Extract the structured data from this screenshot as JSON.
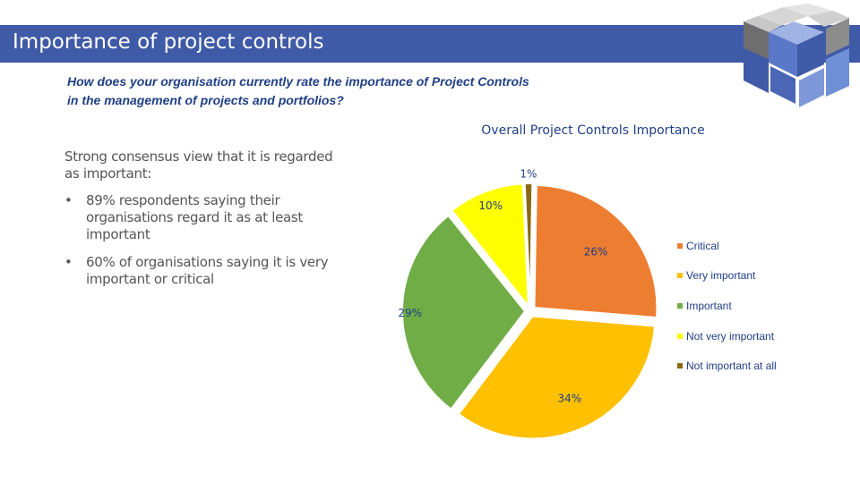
{
  "header": {
    "title": "Importance of project controls"
  },
  "question": {
    "line1": "How does your organisation currently rate the importance of Project Controls",
    "line2": "in the management of projects and portfolios?"
  },
  "summary": {
    "intro": "Strong consensus view that it is regarded as important:",
    "bullet_glyph": "•",
    "bullets": [
      "89% respondents saying their organisations regard it as at least important",
      "60% of organisations saying it is very important or critical"
    ]
  },
  "chart_data": {
    "type": "pie",
    "title": "Overall Project Controls Importance",
    "slices": [
      {
        "name": "Critical",
        "value": 26,
        "label": "26%",
        "color": "#ED7D31"
      },
      {
        "name": "Very important",
        "value": 34,
        "label": "34%",
        "color": "#FFC000"
      },
      {
        "name": "Important",
        "value": 29,
        "label": "29%",
        "color": "#70AD47"
      },
      {
        "name": "Not very important",
        "value": 10,
        "label": "10%",
        "color": "#FFFF00"
      },
      {
        "name": "Not important at all",
        "value": 1,
        "label": "1%",
        "color": "#8B6914"
      }
    ],
    "exploded": true,
    "legend_position": "right"
  },
  "colors": {
    "title_bar": "#3f5aa6",
    "accent_text": "#1f3f86",
    "body_text": "#555555"
  },
  "logo": {
    "icon": "cube-grid-icon"
  }
}
